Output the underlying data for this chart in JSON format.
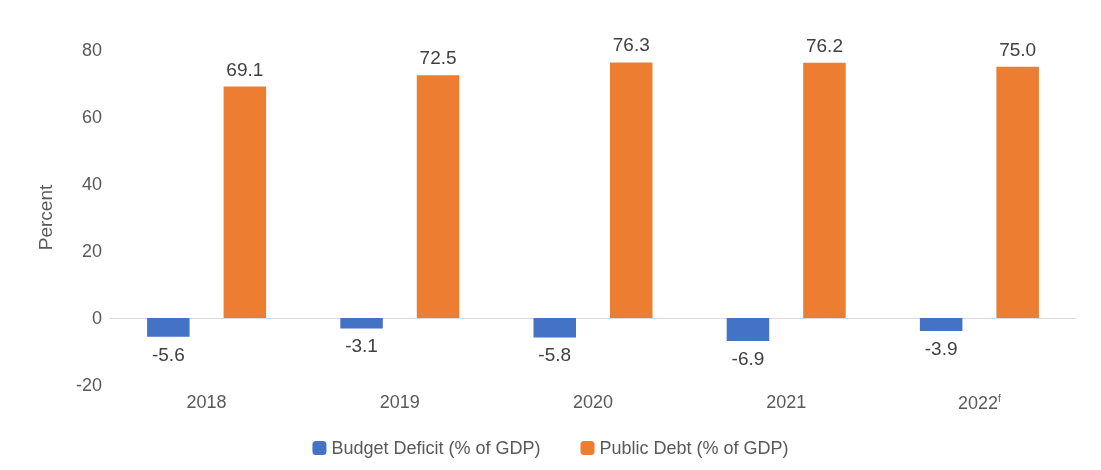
{
  "chart_data": {
    "type": "bar",
    "categories": [
      "2018",
      "2019",
      "2020",
      "2021",
      "2022$^{f}$"
    ],
    "series": [
      {
        "name": "Budget Deficit (% of GDP)",
        "color": "#4472c4",
        "values": [
          -5.6,
          -3.1,
          -5.8,
          -6.9,
          -3.9
        ],
        "value_labels": [
          "-5.6",
          "-3.1",
          "-5.8",
          "-6.9",
          "-3.9"
        ]
      },
      {
        "name": "Public Debt (% of GDP)",
        "color": "#ed7d31",
        "values": [
          69.1,
          72.5,
          76.3,
          76.2,
          75.0
        ],
        "value_labels": [
          "69.1",
          "72.5",
          "76.3",
          "76.2",
          "75.0"
        ]
      }
    ],
    "ylabel": "Percent",
    "ylim": [
      -20,
      80
    ],
    "yticks": [
      -20,
      0,
      20,
      40,
      60,
      80
    ],
    "legend": "bottom"
  }
}
